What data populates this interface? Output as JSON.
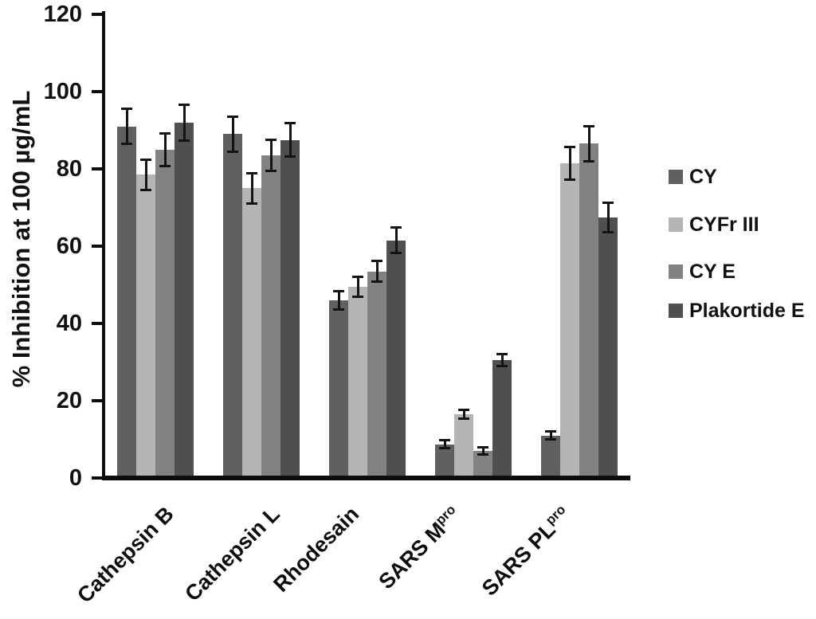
{
  "chart_data": {
    "type": "bar",
    "ylabel": "% Inhibition at 100 µg/mL",
    "ylim": [
      0,
      120
    ],
    "yticks": [
      0,
      20,
      40,
      60,
      80,
      100,
      120
    ],
    "grid": false,
    "legend_position": "right",
    "error_bars": true,
    "categories": [
      {
        "label": "Cathepsin B",
        "sup": ""
      },
      {
        "label": "Cathepsin L",
        "sup": ""
      },
      {
        "label": "Rhodesain",
        "sup": ""
      },
      {
        "label": "SARS M",
        "sup": "pro"
      },
      {
        "label": "SARS PL",
        "sup": "pro"
      }
    ],
    "series": [
      {
        "name": "CY",
        "color": "#606060",
        "values": [
          91,
          89,
          46,
          8.7,
          11
        ],
        "errors": [
          4.6,
          4.6,
          2.4,
          1.1,
          1.1
        ]
      },
      {
        "name": "CYFr III",
        "color": "#b5b5b5",
        "values": [
          78.5,
          75,
          49.5,
          16.5,
          81.5
        ],
        "errors": [
          4.0,
          4.0,
          2.6,
          1.2,
          4.3
        ]
      },
      {
        "name": "CY E",
        "color": "#828282",
        "values": [
          85,
          83.5,
          53.5,
          7,
          86.5
        ],
        "errors": [
          4.3,
          4.2,
          2.7,
          1.0,
          4.6
        ]
      },
      {
        "name": "Plakortide E",
        "color": "#4f4f4f",
        "values": [
          92,
          87.5,
          61.5,
          30.5,
          67.5
        ],
        "errors": [
          4.8,
          4.4,
          3.4,
          1.7,
          3.9
        ]
      }
    ]
  },
  "colors": {
    "axis": "#0d0d0d",
    "error_bar": "#141414",
    "text": "#111111",
    "background": "#ffffff"
  }
}
